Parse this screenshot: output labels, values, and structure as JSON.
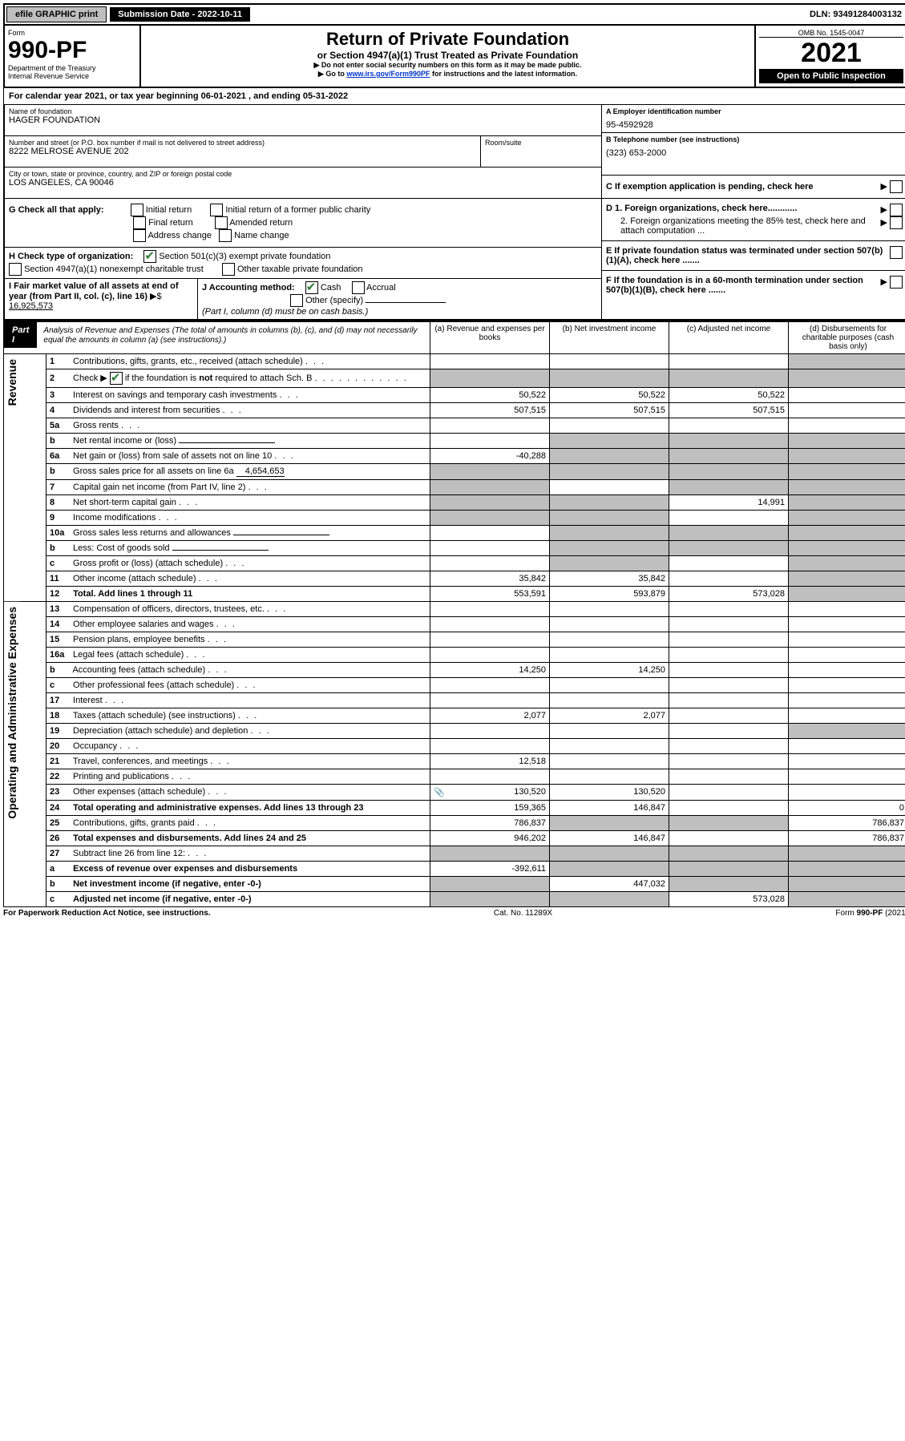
{
  "topbar": {
    "efile": "efile GRAPHIC print",
    "sub_label": "Submission Date - 2022-10-11",
    "dln": "DLN: 93491284003132"
  },
  "form": {
    "form_word": "Form",
    "number": "990-PF",
    "dept": "Department of the Treasury",
    "irs": "Internal Revenue Service",
    "title": "Return of Private Foundation",
    "subtitle": "or Section 4947(a)(1) Trust Treated as Private Foundation",
    "warn1": "▶ Do not enter social security numbers on this form as it may be made public.",
    "warn2_pre": "▶ Go to ",
    "warn2_link": "www.irs.gov/Form990PF",
    "warn2_post": " for instructions and the latest information.",
    "omb": "OMB No. 1545-0047",
    "year": "2021",
    "open": "Open to Public Inspection"
  },
  "calendar": {
    "text_a": "For calendar year 2021, or tax year beginning ",
    "begin": "06-01-2021",
    "text_b": " , and ending ",
    "end": "05-31-2022"
  },
  "entity": {
    "name_label": "Name of foundation",
    "name": "HAGER FOUNDATION",
    "addr_label": "Number and street (or P.O. box number if mail is not delivered to street address)",
    "addr": "8222 MELROSE AVENUE 202",
    "room_label": "Room/suite",
    "city_label": "City or town, state or province, country, and ZIP or foreign postal code",
    "city": "LOS ANGELES, CA  90046",
    "ein_label": "A Employer identification number",
    "ein": "95-4592928",
    "tel_label": "B Telephone number (see instructions)",
    "tel": "(323) 653-2000",
    "c_label": "C If exemption application is pending, check here",
    "d1": "D 1. Foreign organizations, check here............",
    "d2": "2. Foreign organizations meeting the 85% test, check here and attach computation ...",
    "e": "E If private foundation status was terminated under section 507(b)(1)(A), check here .......",
    "f": "F If the foundation is in a 60-month termination under section 507(b)(1)(B), check here .......",
    "g_label": "G Check all that apply:",
    "g_opts": [
      "Initial return",
      "Final return",
      "Address change",
      "Initial return of a former public charity",
      "Amended return",
      "Name change"
    ],
    "h_label": "H Check type of organization:",
    "h1": "Section 501(c)(3) exempt private foundation",
    "h2": "Section 4947(a)(1) nonexempt charitable trust",
    "h3": "Other taxable private foundation",
    "i_label": "I Fair market value of all assets at end of year (from Part II, col. (c), line 16)",
    "i_val": "16,925,573",
    "j_label": "J Accounting method:",
    "j_cash": "Cash",
    "j_accr": "Accrual",
    "j_other": "Other (specify)",
    "j_note": "(Part I, column (d) must be on cash basis.)"
  },
  "part1": {
    "tag": "Part I",
    "title": "Analysis of Revenue and Expenses",
    "note": " (The total of amounts in columns (b), (c), and (d) may not necessarily equal the amounts in column (a) (see instructions).)",
    "col_a": "(a)  Revenue and expenses per books",
    "col_b": "(b)  Net investment income",
    "col_c": "(c)  Adjusted net income",
    "col_d": "(d)  Disbursements for charitable purposes (cash basis only)"
  },
  "side_labels": {
    "rev": "Revenue",
    "exp": "Operating and Administrative Expenses"
  },
  "lines": [
    {
      "n": "1",
      "t": "Contributions, gifts, grants, etc., received (attach schedule)",
      "a": "",
      "b": "",
      "c": "",
      "d": "",
      "d_grey": true
    },
    {
      "n": "2",
      "t": "Check ▶ ☑ if the foundation is not required to attach Sch. B",
      "a": "",
      "b": "",
      "c": "",
      "d": "",
      "full_grey": true,
      "is_check": true
    },
    {
      "n": "3",
      "t": "Interest on savings and temporary cash investments",
      "a": "50,522",
      "b": "50,522",
      "c": "50,522",
      "d": ""
    },
    {
      "n": "4",
      "t": "Dividends and interest from securities",
      "a": "507,515",
      "b": "507,515",
      "c": "507,515",
      "d": ""
    },
    {
      "n": "5a",
      "t": "Gross rents",
      "a": "",
      "b": "",
      "c": "",
      "d": ""
    },
    {
      "n": "b",
      "t": "Net rental income or (loss)",
      "a": "",
      "b": "",
      "c": "",
      "d": "",
      "bcd_grey": true,
      "inline": true
    },
    {
      "n": "6a",
      "t": "Net gain or (loss) from sale of assets not on line 10",
      "a": "-40,288",
      "b": "",
      "c": "",
      "d": "",
      "bcd_grey": true
    },
    {
      "n": "b",
      "t": "Gross sales price for all assets on line 6a",
      "a": "",
      "b": "",
      "c": "",
      "d": "",
      "all_grey": true,
      "inline_val": "4,654,653"
    },
    {
      "n": "7",
      "t": "Capital gain net income (from Part IV, line 2)",
      "a": "",
      "b": "",
      "c": "",
      "d": "",
      "a_grey": true,
      "cd_grey": true
    },
    {
      "n": "8",
      "t": "Net short-term capital gain",
      "a": "",
      "b": "",
      "c": "14,991",
      "d": "",
      "ab_grey": true,
      "d_grey": true
    },
    {
      "n": "9",
      "t": "Income modifications",
      "a": "",
      "b": "",
      "c": "",
      "d": "",
      "ab_grey": true,
      "d_grey": true
    },
    {
      "n": "10a",
      "t": "Gross sales less returns and allowances",
      "a": "",
      "b": "",
      "c": "",
      "d": "",
      "bcd_grey": true,
      "inline": true
    },
    {
      "n": "b",
      "t": "Less: Cost of goods sold",
      "a": "",
      "b": "",
      "c": "",
      "d": "",
      "bcd_grey": true,
      "inline": true
    },
    {
      "n": "c",
      "t": "Gross profit or (loss) (attach schedule)",
      "a": "",
      "b": "",
      "c": "",
      "d": "",
      "b_grey": true,
      "d_grey": true
    },
    {
      "n": "11",
      "t": "Other income (attach schedule)",
      "a": "35,842",
      "b": "35,842",
      "c": "",
      "d": "",
      "d_grey": true
    },
    {
      "n": "12",
      "t": "Total. Add lines 1 through 11",
      "a": "553,591",
      "b": "593,879",
      "c": "573,028",
      "d": "",
      "bold": true,
      "d_grey": true
    },
    {
      "n": "13",
      "t": "Compensation of officers, directors, trustees, etc.",
      "a": "",
      "b": "",
      "c": "",
      "d": ""
    },
    {
      "n": "14",
      "t": "Other employee salaries and wages",
      "a": "",
      "b": "",
      "c": "",
      "d": ""
    },
    {
      "n": "15",
      "t": "Pension plans, employee benefits",
      "a": "",
      "b": "",
      "c": "",
      "d": ""
    },
    {
      "n": "16a",
      "t": "Legal fees (attach schedule)",
      "a": "",
      "b": "",
      "c": "",
      "d": ""
    },
    {
      "n": "b",
      "t": "Accounting fees (attach schedule)",
      "a": "14,250",
      "b": "14,250",
      "c": "",
      "d": ""
    },
    {
      "n": "c",
      "t": "Other professional fees (attach schedule)",
      "a": "",
      "b": "",
      "c": "",
      "d": ""
    },
    {
      "n": "17",
      "t": "Interest",
      "a": "",
      "b": "",
      "c": "",
      "d": ""
    },
    {
      "n": "18",
      "t": "Taxes (attach schedule) (see instructions)",
      "a": "2,077",
      "b": "2,077",
      "c": "",
      "d": ""
    },
    {
      "n": "19",
      "t": "Depreciation (attach schedule) and depletion",
      "a": "",
      "b": "",
      "c": "",
      "d": "",
      "d_grey": true
    },
    {
      "n": "20",
      "t": "Occupancy",
      "a": "",
      "b": "",
      "c": "",
      "d": ""
    },
    {
      "n": "21",
      "t": "Travel, conferences, and meetings",
      "a": "12,518",
      "b": "",
      "c": "",
      "d": ""
    },
    {
      "n": "22",
      "t": "Printing and publications",
      "a": "",
      "b": "",
      "c": "",
      "d": ""
    },
    {
      "n": "23",
      "t": "Other expenses (attach schedule)",
      "a": "130,520",
      "b": "130,520",
      "c": "",
      "d": "",
      "icon": true
    },
    {
      "n": "24",
      "t": "Total operating and administrative expenses. Add lines 13 through 23",
      "a": "159,365",
      "b": "146,847",
      "c": "",
      "d": "0",
      "bold": true
    },
    {
      "n": "25",
      "t": "Contributions, gifts, grants paid",
      "a": "786,837",
      "b": "",
      "c": "",
      "d": "786,837",
      "bc_grey": true
    },
    {
      "n": "26",
      "t": "Total expenses and disbursements. Add lines 24 and 25",
      "a": "946,202",
      "b": "146,847",
      "c": "",
      "d": "786,837",
      "bold": true
    },
    {
      "n": "27",
      "t": "Subtract line 26 from line 12:",
      "a": "",
      "b": "",
      "c": "",
      "d": "",
      "bcd_grey": true,
      "a_grey": true
    },
    {
      "n": "a",
      "t": "Excess of revenue over expenses and disbursements",
      "a": "-392,611",
      "b": "",
      "c": "",
      "d": "",
      "bold": true,
      "bcd_grey": true
    },
    {
      "n": "b",
      "t": "Net investment income (if negative, enter -0-)",
      "a": "",
      "b": "447,032",
      "c": "",
      "d": "",
      "bold": true,
      "a_grey": true,
      "cd_grey": true
    },
    {
      "n": "c",
      "t": "Adjusted net income (if negative, enter -0-)",
      "a": "",
      "b": "",
      "c": "573,028",
      "d": "",
      "bold": true,
      "ab_grey": true,
      "d_grey": true
    }
  ],
  "footer": {
    "left": "For Paperwork Reduction Act Notice, see instructions.",
    "mid": "Cat. No. 11289X",
    "right": "Form 990-PF (2021)"
  }
}
